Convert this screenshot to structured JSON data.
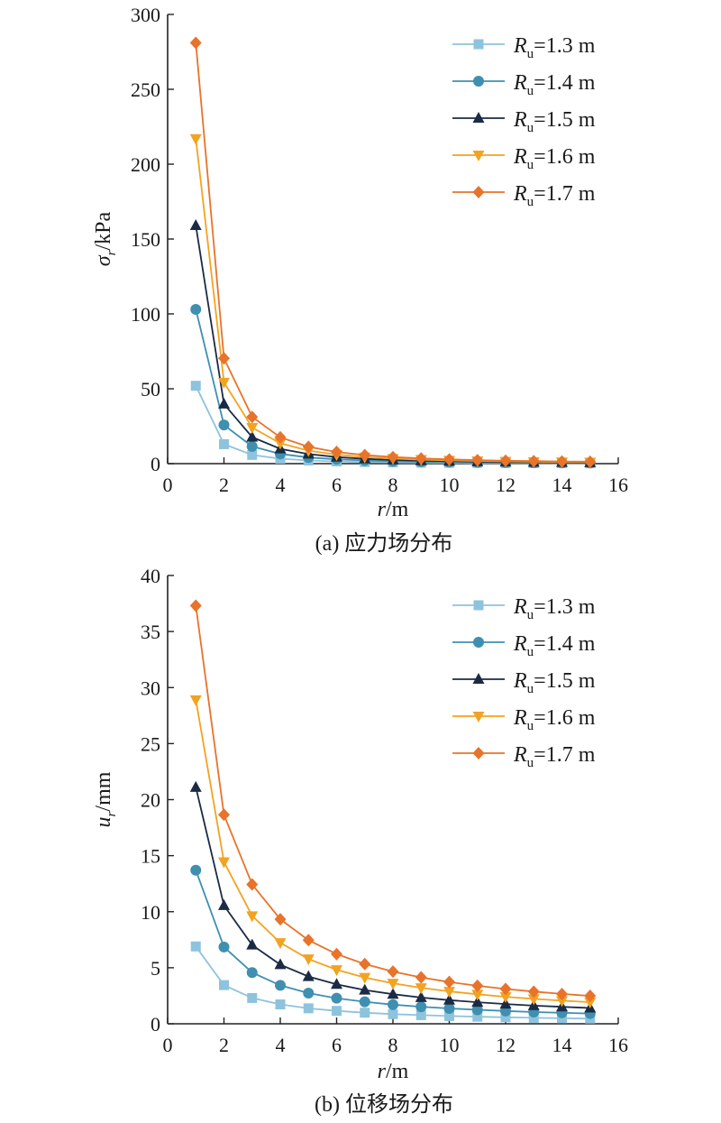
{
  "chart_data": [
    {
      "type": "line",
      "caption": "(a) 应力场分布",
      "xlabel": {
        "var": "r",
        "unit": "/m"
      },
      "ylabel": {
        "var": "σ",
        "sub": "r",
        "unit": "/kPa"
      },
      "xlim": [
        0,
        16
      ],
      "ylim": [
        0,
        300
      ],
      "xticks": [
        "0",
        "2",
        "4",
        "6",
        "8",
        "10",
        "12",
        "14",
        "16"
      ],
      "yticks": [
        "0",
        "50",
        "100",
        "150",
        "200",
        "250",
        "300"
      ],
      "legend_position": "top-right",
      "x": [
        1,
        2,
        3,
        4,
        5,
        6,
        7,
        8,
        9,
        10,
        11,
        12,
        13,
        14,
        15
      ],
      "series": [
        {
          "name": "Ru=1.3 m",
          "label_main": "R",
          "label_sub": "u",
          "label_rest": "=1.3 m",
          "color": "#8ec3dd",
          "marker": "square",
          "values": [
            52,
            13,
            5.8,
            3.3,
            2.1,
            1.45,
            1.06,
            0.81,
            0.64,
            0.52,
            0.43,
            0.36,
            0.31,
            0.27,
            0.23
          ]
        },
        {
          "name": "Ru=1.4 m",
          "label_main": "R",
          "label_sub": "u",
          "label_rest": "=1.4 m",
          "color": "#3f8fb0",
          "marker": "circle",
          "values": [
            103,
            25.8,
            11.5,
            6.5,
            4.1,
            2.9,
            2.1,
            1.6,
            1.27,
            1.03,
            0.85,
            0.72,
            0.61,
            0.53,
            0.46
          ]
        },
        {
          "name": "Ru=1.5 m",
          "label_main": "R",
          "label_sub": "u",
          "label_rest": "=1.5 m",
          "color": "#1b2b45",
          "marker": "triangle-up",
          "values": [
            159,
            39.8,
            17.7,
            9.9,
            6.4,
            4.4,
            3.2,
            2.5,
            1.96,
            1.59,
            1.31,
            1.1,
            0.94,
            0.81,
            0.71
          ]
        },
        {
          "name": "Ru=1.6 m",
          "label_main": "R",
          "label_sub": "u",
          "label_rest": "=1.6 m",
          "color": "#f2a321",
          "marker": "triangle-down",
          "values": [
            217,
            54.3,
            24.1,
            13.6,
            8.7,
            6.0,
            4.4,
            3.4,
            2.68,
            2.17,
            1.79,
            1.51,
            1.28,
            1.11,
            0.96
          ]
        },
        {
          "name": "Ru=1.7 m",
          "label_main": "R",
          "label_sub": "u",
          "label_rest": "=1.7 m",
          "color": "#e8732a",
          "marker": "diamond",
          "values": [
            281,
            70.3,
            31.2,
            17.6,
            11.2,
            7.8,
            5.7,
            4.4,
            3.47,
            2.81,
            2.32,
            1.95,
            1.66,
            1.43,
            1.25
          ]
        }
      ]
    },
    {
      "type": "line",
      "caption": "(b) 位移场分布",
      "xlabel": {
        "var": "r",
        "unit": "/m"
      },
      "ylabel": {
        "var": "u",
        "sub": "r",
        "unit": "/mm"
      },
      "xlim": [
        0,
        16
      ],
      "ylim": [
        0,
        40
      ],
      "xticks": [
        "0",
        "2",
        "4",
        "6",
        "8",
        "10",
        "12",
        "14",
        "16"
      ],
      "yticks": [
        "0",
        "5",
        "10",
        "15",
        "20",
        "25",
        "30",
        "35",
        "40"
      ],
      "legend_position": "top-right",
      "x": [
        1,
        2,
        3,
        4,
        5,
        6,
        7,
        8,
        9,
        10,
        11,
        12,
        13,
        14,
        15
      ],
      "series": [
        {
          "name": "Ru=1.3 m",
          "label_main": "R",
          "label_sub": "u",
          "label_rest": "=1.3 m",
          "color": "#8ec3dd",
          "marker": "square",
          "values": [
            6.9,
            3.45,
            2.3,
            1.73,
            1.38,
            1.15,
            0.99,
            0.86,
            0.77,
            0.69,
            0.63,
            0.58,
            0.53,
            0.49,
            0.46
          ]
        },
        {
          "name": "Ru=1.4 m",
          "label_main": "R",
          "label_sub": "u",
          "label_rest": "=1.4 m",
          "color": "#3f8fb0",
          "marker": "circle",
          "values": [
            13.7,
            6.85,
            4.57,
            3.43,
            2.74,
            2.28,
            1.96,
            1.71,
            1.52,
            1.37,
            1.25,
            1.14,
            1.05,
            0.98,
            0.91
          ]
        },
        {
          "name": "Ru=1.5 m",
          "label_main": "R",
          "label_sub": "u",
          "label_rest": "=1.5 m",
          "color": "#1b2b45",
          "marker": "triangle-up",
          "values": [
            21.1,
            10.55,
            7.03,
            5.28,
            4.22,
            3.52,
            3.01,
            2.64,
            2.34,
            2.11,
            1.92,
            1.76,
            1.62,
            1.51,
            1.41
          ]
        },
        {
          "name": "Ru=1.6 m",
          "label_main": "R",
          "label_sub": "u",
          "label_rest": "=1.6 m",
          "color": "#f2a321",
          "marker": "triangle-down",
          "values": [
            28.9,
            14.45,
            9.63,
            7.23,
            5.78,
            4.82,
            4.13,
            3.61,
            3.21,
            2.89,
            2.63,
            2.41,
            2.22,
            2.06,
            1.93
          ]
        },
        {
          "name": "Ru=1.7 m",
          "label_main": "R",
          "label_sub": "u",
          "label_rest": "=1.7 m",
          "color": "#e8732a",
          "marker": "diamond",
          "values": [
            37.3,
            18.65,
            12.43,
            9.33,
            7.46,
            6.22,
            5.33,
            4.66,
            4.14,
            3.73,
            3.39,
            3.11,
            2.87,
            2.66,
            2.49
          ]
        }
      ]
    }
  ]
}
